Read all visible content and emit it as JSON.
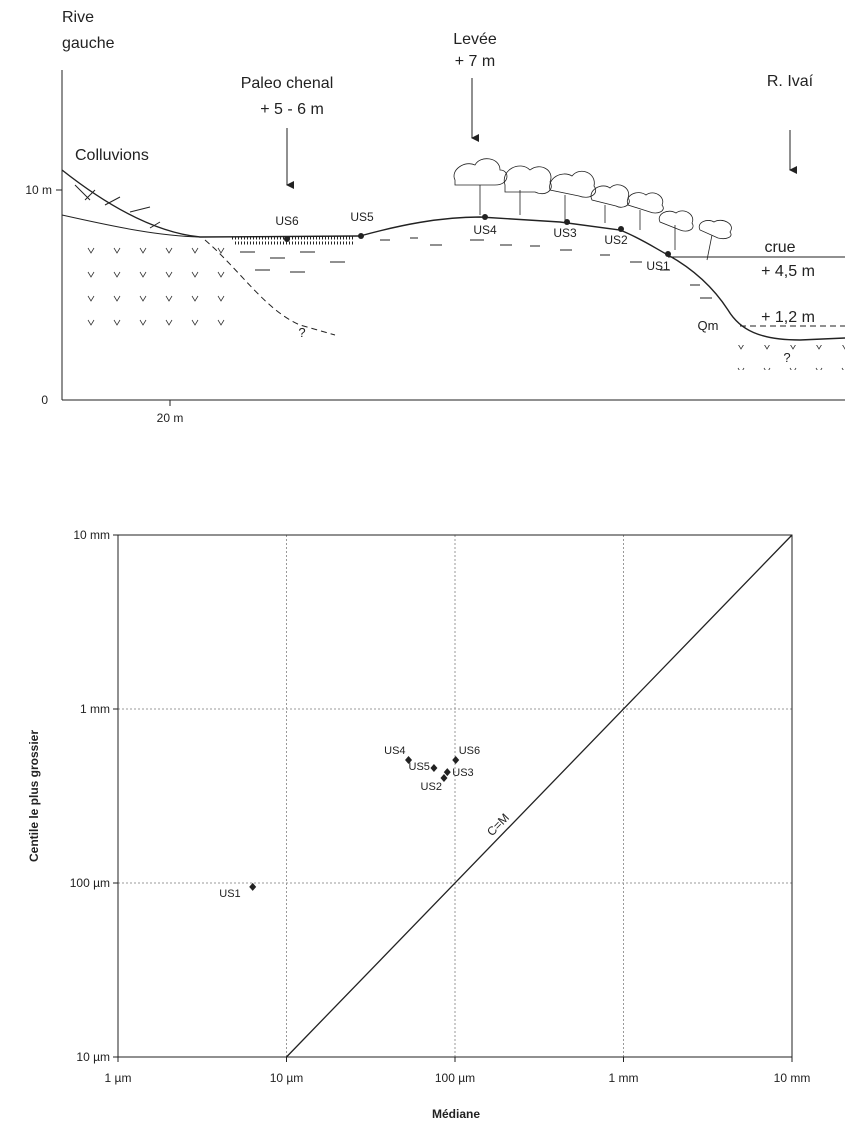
{
  "diagram": {
    "rive_gauche": [
      "Rive",
      "gauche"
    ],
    "paleo_chenal": [
      "Paleo chenal",
      "+ 5 - 6 m"
    ],
    "levee": [
      "Levée",
      "+ 7 m"
    ],
    "riviere": "R. Ivaí",
    "colluvions": "Colluvions",
    "axis_labels": [
      "10 m",
      "0",
      "20 m"
    ],
    "units": [
      "US6",
      "US5",
      "US4",
      "US3",
      "US2",
      "US1"
    ],
    "crue": [
      "crue",
      "+ 4,5 m"
    ],
    "terrace": "+ 1,2 m",
    "qm": "Qm",
    "unknown": [
      "?",
      "?"
    ]
  },
  "chart_data": {
    "type": "scatter",
    "x_label": "Médiane",
    "y_label": "Centile le plus grossier",
    "x": [
      6.3,
      53,
      101,
      75,
      90,
      86
    ],
    "values": [
      95,
      509,
      509,
      458,
      434,
      401
    ],
    "point_labels": [
      "US1",
      "US4",
      "US6",
      "US5",
      "US3",
      "US2"
    ],
    "color": "#222222",
    "xscale": "log",
    "yscale": "log",
    "xlim": [
      1,
      10000
    ],
    "ylim": [
      10,
      10000
    ],
    "xticks": [
      {
        "value": 1,
        "label": "1 µm"
      },
      {
        "value": 10,
        "label": "10 µm"
      },
      {
        "value": 100,
        "label": "100 µm"
      },
      {
        "value": 1000,
        "label": "1 mm"
      },
      {
        "value": 10000,
        "label": "10 mm"
      }
    ],
    "yticks": [
      {
        "value": 10,
        "label": "10 µm"
      },
      {
        "value": 100,
        "label": "100 µm"
      },
      {
        "value": 1000,
        "label": "1 mm"
      },
      {
        "value": 10000,
        "label": "10 mm"
      }
    ],
    "grid": true,
    "identity_line_label": "C=M"
  }
}
